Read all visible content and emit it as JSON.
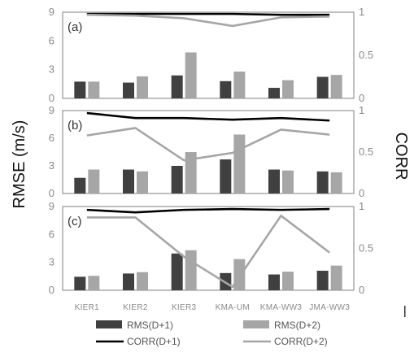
{
  "chart_data": {
    "type": "bar",
    "categories": [
      "KIER1",
      "KIER2",
      "KIER3",
      "KMA-UM",
      "KMA-WW3",
      "JMA-WW3"
    ],
    "ylabel": "RMSE (m/s)",
    "y2label": "CORR",
    "ylim": [
      0,
      9
    ],
    "y2lim": [
      0,
      1
    ],
    "yticks": [
      "0",
      "3",
      "6",
      "9"
    ],
    "y2ticks": [
      "0",
      "0.5",
      "1"
    ],
    "legend_position": "bottom",
    "colors": {
      "RMS(D+1)": "#404040",
      "RMS(D+2)": "#a6a6a6",
      "CORR(D+1)": "#000000",
      "CORR(D+2)": "#a6a6a6"
    },
    "legend": [
      "RMS(D+1)",
      "RMS(D+2)",
      "CORR(D+1)",
      "CORR(D+2)"
    ],
    "panels": [
      {
        "label": "(a)",
        "series": [
          {
            "name": "RMS(D+1)",
            "kind": "bar",
            "values": [
              1.75,
              1.65,
              2.4,
              1.8,
              1.1,
              2.25
            ]
          },
          {
            "name": "RMS(D+2)",
            "kind": "bar",
            "values": [
              1.75,
              2.3,
              4.8,
              2.8,
              1.9,
              2.45
            ]
          },
          {
            "name": "CORR(D+1)",
            "kind": "line",
            "values": [
              0.98,
              0.98,
              0.98,
              0.98,
              0.97,
              0.97
            ]
          },
          {
            "name": "CORR(D+2)",
            "kind": "line",
            "values": [
              0.97,
              0.96,
              0.93,
              0.84,
              0.94,
              0.95
            ]
          }
        ]
      },
      {
        "label": "(b)",
        "series": [
          {
            "name": "RMS(D+1)",
            "kind": "bar",
            "values": [
              1.7,
              2.6,
              3.0,
              3.7,
              2.6,
              2.4
            ]
          },
          {
            "name": "RMS(D+2)",
            "kind": "bar",
            "values": [
              2.6,
              2.4,
              4.5,
              6.4,
              2.5,
              2.3
            ]
          },
          {
            "name": "CORR(D+1)",
            "kind": "line",
            "values": [
              0.97,
              0.91,
              0.91,
              0.89,
              0.91,
              0.88
            ]
          },
          {
            "name": "CORR(D+2)",
            "kind": "line",
            "values": [
              0.7,
              0.79,
              0.4,
              0.49,
              0.77,
              0.71
            ]
          }
        ]
      },
      {
        "label": "(c)",
        "series": [
          {
            "name": "RMS(D+1)",
            "kind": "bar",
            "values": [
              1.45,
              1.8,
              3.95,
              1.85,
              1.7,
              2.1
            ]
          },
          {
            "name": "RMS(D+2)",
            "kind": "bar",
            "values": [
              1.55,
              1.95,
              4.3,
              3.35,
              2.0,
              2.65
            ]
          },
          {
            "name": "CORR(D+1)",
            "kind": "line",
            "values": [
              0.96,
              0.93,
              0.96,
              0.97,
              0.96,
              0.97
            ]
          },
          {
            "name": "CORR(D+2)",
            "kind": "line",
            "values": [
              0.87,
              0.87,
              0.4,
              0.04,
              0.89,
              0.45
            ]
          }
        ]
      }
    ]
  }
}
